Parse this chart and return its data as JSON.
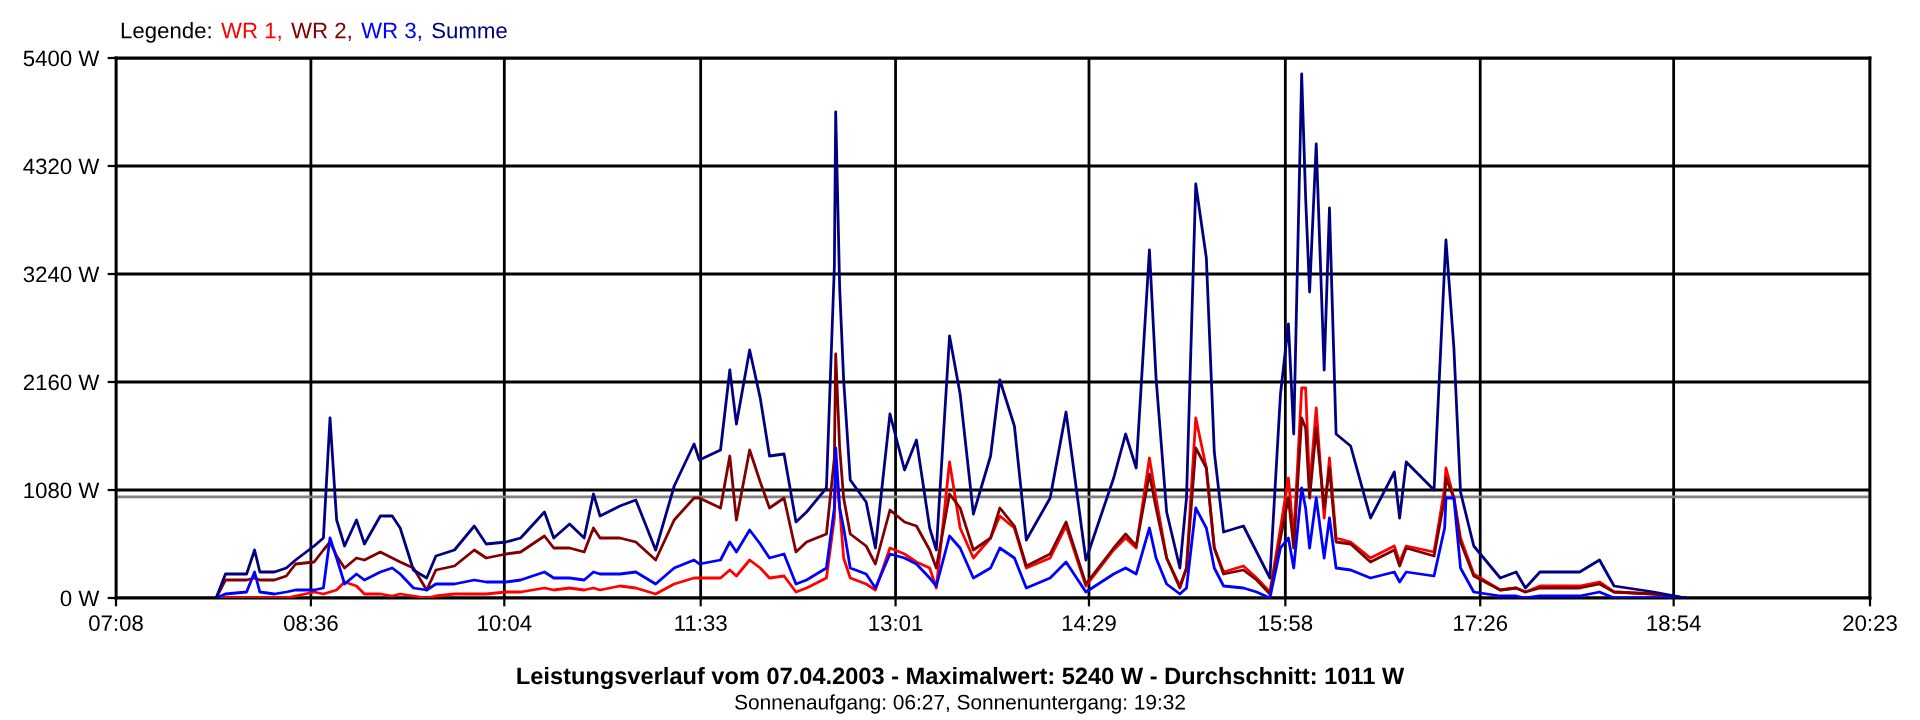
{
  "chart_data": {
    "type": "line",
    "title": "Leistungsverlauf vom 07.04.2003 - Maximalwert: 5240 W - Durchschnitt: 1011 W",
    "subtitle": "Sonnenaufgang: 06:27, Sonnenuntergang: 19:32",
    "legend_title": "Legende:",
    "legend": "top left",
    "grid": true,
    "marker": "none",
    "line_style": "solid",
    "x": [
      7.89,
      7.96,
      8.12,
      8.18,
      8.22,
      8.33,
      8.42,
      8.49,
      8.63,
      8.7,
      8.75,
      8.8,
      8.86,
      8.95,
      9.01,
      9.13,
      9.22,
      9.28,
      9.38,
      9.48,
      9.55,
      9.69,
      9.84,
      9.93,
      10.08,
      10.19,
      10.37,
      10.44,
      10.56,
      10.67,
      10.74,
      10.79,
      10.94,
      11.06,
      11.21,
      11.35,
      11.5,
      11.54,
      11.7,
      11.77,
      11.82,
      11.92,
      12.0,
      12.07,
      12.18,
      12.27,
      12.35,
      12.5,
      12.56,
      12.57,
      12.6,
      12.63,
      12.68,
      12.8,
      12.87,
      12.98,
      13.09,
      13.18,
      13.28,
      13.33,
      13.43,
      13.51,
      13.61,
      13.74,
      13.81,
      13.92,
      14.01,
      14.19,
      14.31,
      14.46,
      14.67,
      14.76,
      14.84,
      14.94,
      14.99,
      15.07,
      15.17,
      15.22,
      15.29,
      15.37,
      15.43,
      15.5,
      15.65,
      15.75,
      15.85,
      15.93,
      15.99,
      16.03,
      16.09,
      16.12,
      16.15,
      16.2,
      16.26,
      16.3,
      16.35,
      16.46,
      16.61,
      16.79,
      16.83,
      16.88,
      17.09,
      17.17,
      17.18,
      17.24,
      17.29,
      17.39,
      17.59,
      17.71,
      17.78,
      17.89,
      18.19,
      18.34,
      18.45,
      18.75,
      18.99
    ],
    "series": [
      {
        "name": "WR 1,",
        "color": "#ff0000",
        "values": [
          0,
          0,
          0,
          0,
          0,
          0,
          0,
          20,
          60,
          40,
          60,
          80,
          160,
          120,
          40,
          40,
          20,
          40,
          20,
          0,
          20,
          40,
          40,
          40,
          60,
          60,
          100,
          80,
          100,
          80,
          100,
          80,
          120,
          100,
          40,
          140,
          200,
          200,
          200,
          280,
          220,
          380,
          300,
          200,
          220,
          60,
          100,
          200,
          800,
          1300,
          900,
          400,
          200,
          140,
          80,
          500,
          440,
          360,
          300,
          100,
          1360,
          700,
          400,
          600,
          820,
          700,
          300,
          400,
          720,
          120,
          480,
          600,
          500,
          1400,
          1000,
          400,
          120,
          300,
          1800,
          1300,
          500,
          260,
          320,
          200,
          60,
          700,
          1200,
          600,
          2100,
          2100,
          1100,
          1900,
          800,
          1400,
          600,
          560,
          400,
          520,
          360,
          520,
          460,
          1100,
          1300,
          1000,
          600,
          240,
          80,
          100,
          60,
          120,
          120,
          160,
          60,
          40,
          0
        ]
      },
      {
        "name": "WR 2,",
        "color": "#800000",
        "values": [
          0,
          180,
          180,
          200,
          180,
          180,
          220,
          340,
          360,
          480,
          560,
          420,
          300,
          400,
          380,
          460,
          400,
          360,
          300,
          80,
          280,
          320,
          480,
          400,
          440,
          460,
          620,
          500,
          500,
          460,
          700,
          600,
          600,
          560,
          380,
          780,
          1000,
          1000,
          900,
          1420,
          780,
          1480,
          1160,
          900,
          1000,
          460,
          560,
          640,
          1400,
          2440,
          1500,
          1000,
          640,
          520,
          340,
          880,
          760,
          720,
          480,
          300,
          1040,
          900,
          480,
          600,
          900,
          720,
          320,
          440,
          760,
          140,
          500,
          640,
          520,
          1240,
          900,
          400,
          100,
          300,
          1500,
          1300,
          500,
          240,
          280,
          180,
          40,
          600,
          1000,
          500,
          1800,
          1700,
          1000,
          1700,
          900,
          1300,
          560,
          540,
          360,
          480,
          320,
          500,
          420,
          1000,
          1200,
          1000,
          560,
          220,
          80,
          100,
          60,
          100,
          100,
          140,
          60,
          40,
          0
        ]
      },
      {
        "name": "WR 3,",
        "color": "#0000ff",
        "values": [
          0,
          40,
          60,
          260,
          60,
          40,
          60,
          80,
          80,
          100,
          600,
          400,
          140,
          240,
          180,
          260,
          300,
          240,
          100,
          80,
          140,
          140,
          180,
          160,
          160,
          180,
          260,
          200,
          200,
          180,
          260,
          240,
          240,
          260,
          140,
          300,
          380,
          340,
          380,
          560,
          460,
          680,
          540,
          400,
          440,
          140,
          180,
          300,
          900,
          1500,
          900,
          700,
          300,
          240,
          100,
          440,
          400,
          340,
          200,
          120,
          620,
          500,
          200,
          300,
          500,
          400,
          100,
          200,
          360,
          60,
          240,
          300,
          240,
          700,
          400,
          140,
          40,
          100,
          900,
          700,
          300,
          120,
          100,
          60,
          0,
          500,
          600,
          300,
          1100,
          900,
          500,
          1000,
          400,
          800,
          300,
          280,
          200,
          260,
          160,
          260,
          220,
          700,
          1000,
          1000,
          300,
          60,
          20,
          20,
          0,
          20,
          20,
          60,
          0,
          0,
          0
        ]
      },
      {
        "name": "Summe",
        "color": "#000080",
        "values": [
          0,
          240,
          240,
          480,
          260,
          260,
          300,
          380,
          520,
          600,
          1800,
          780,
          520,
          780,
          540,
          820,
          820,
          700,
          280,
          200,
          420,
          480,
          720,
          540,
          560,
          600,
          860,
          600,
          740,
          600,
          1040,
          820,
          920,
          980,
          480,
          1120,
          1540,
          1380,
          1480,
          2280,
          1740,
          2480,
          2000,
          1420,
          1440,
          760,
          860,
          1100,
          3320,
          4860,
          3100,
          2180,
          1180,
          960,
          500,
          1840,
          1280,
          1580,
          700,
          480,
          2620,
          2040,
          840,
          1420,
          2180,
          1720,
          580,
          1000,
          1860,
          380,
          1200,
          1640,
          1300,
          3480,
          2200,
          860,
          300,
          1000,
          4140,
          3400,
          1460,
          660,
          720,
          460,
          200,
          2040,
          2740,
          1640,
          5240,
          4000,
          3060,
          4540,
          2280,
          3900,
          1640,
          1520,
          800,
          1260,
          800,
          1360,
          1080,
          3320,
          3580,
          2500,
          1060,
          520,
          200,
          260,
          100,
          260,
          260,
          380,
          120,
          60,
          0
        ]
      }
    ],
    "xlim": [
      7.1333,
      20.3833
    ],
    "xticks": [
      {
        "value": 7.1333,
        "label": "07:08"
      },
      {
        "value": 8.6056,
        "label": "08:36"
      },
      {
        "value": 10.0667,
        "label": "10:04"
      },
      {
        "value": 11.55,
        "label": "11:33"
      },
      {
        "value": 13.0222,
        "label": "13:01"
      },
      {
        "value": 14.4833,
        "label": "14:29"
      },
      {
        "value": 15.9667,
        "label": "15:58"
      },
      {
        "value": 17.4389,
        "label": "17:26"
      },
      {
        "value": 18.9,
        "label": "18:54"
      },
      {
        "value": 20.3833,
        "label": "20:23"
      }
    ],
    "ylim": [
      0,
      5400
    ],
    "yticks": [
      {
        "value": 0,
        "label": "0 W"
      },
      {
        "value": 1080,
        "label": "1080 W"
      },
      {
        "value": 2160,
        "label": "2160 W"
      },
      {
        "value": 3240,
        "label": "3240 W"
      },
      {
        "value": 4320,
        "label": "4320 W"
      },
      {
        "value": 5400,
        "label": "5400 W"
      }
    ],
    "ref_lines": [
      {
        "axis": "y",
        "value": 1011,
        "color": "#808080"
      }
    ]
  }
}
